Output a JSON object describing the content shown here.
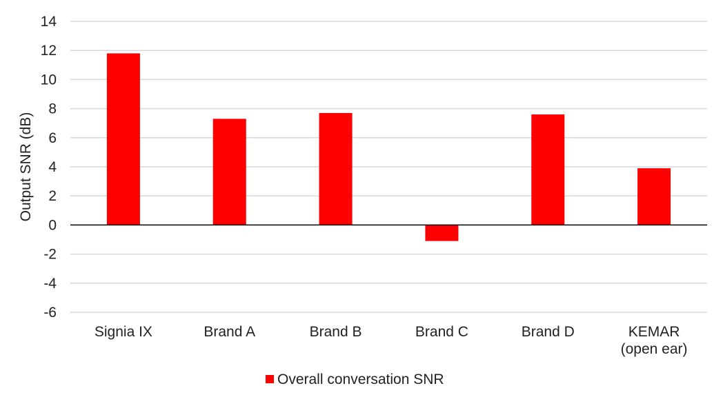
{
  "chart_data": {
    "type": "bar",
    "categories": [
      "Signia IX",
      "Brand A",
      "Brand B",
      "Brand C",
      "Brand D",
      "KEMAR\n(open ear)"
    ],
    "series": [
      {
        "name": "Overall conversation SNR",
        "values": [
          11.8,
          7.3,
          7.7,
          -1.1,
          7.6,
          3.9
        ],
        "color": "#ff0000"
      }
    ],
    "ylabel": "Output SNR (dB)",
    "ylim": [
      -6,
      14
    ],
    "yticks": [
      14,
      12,
      10,
      8,
      6,
      4,
      2,
      0,
      -2,
      -4,
      -6
    ],
    "grid": true,
    "legend_position": "bottom"
  }
}
